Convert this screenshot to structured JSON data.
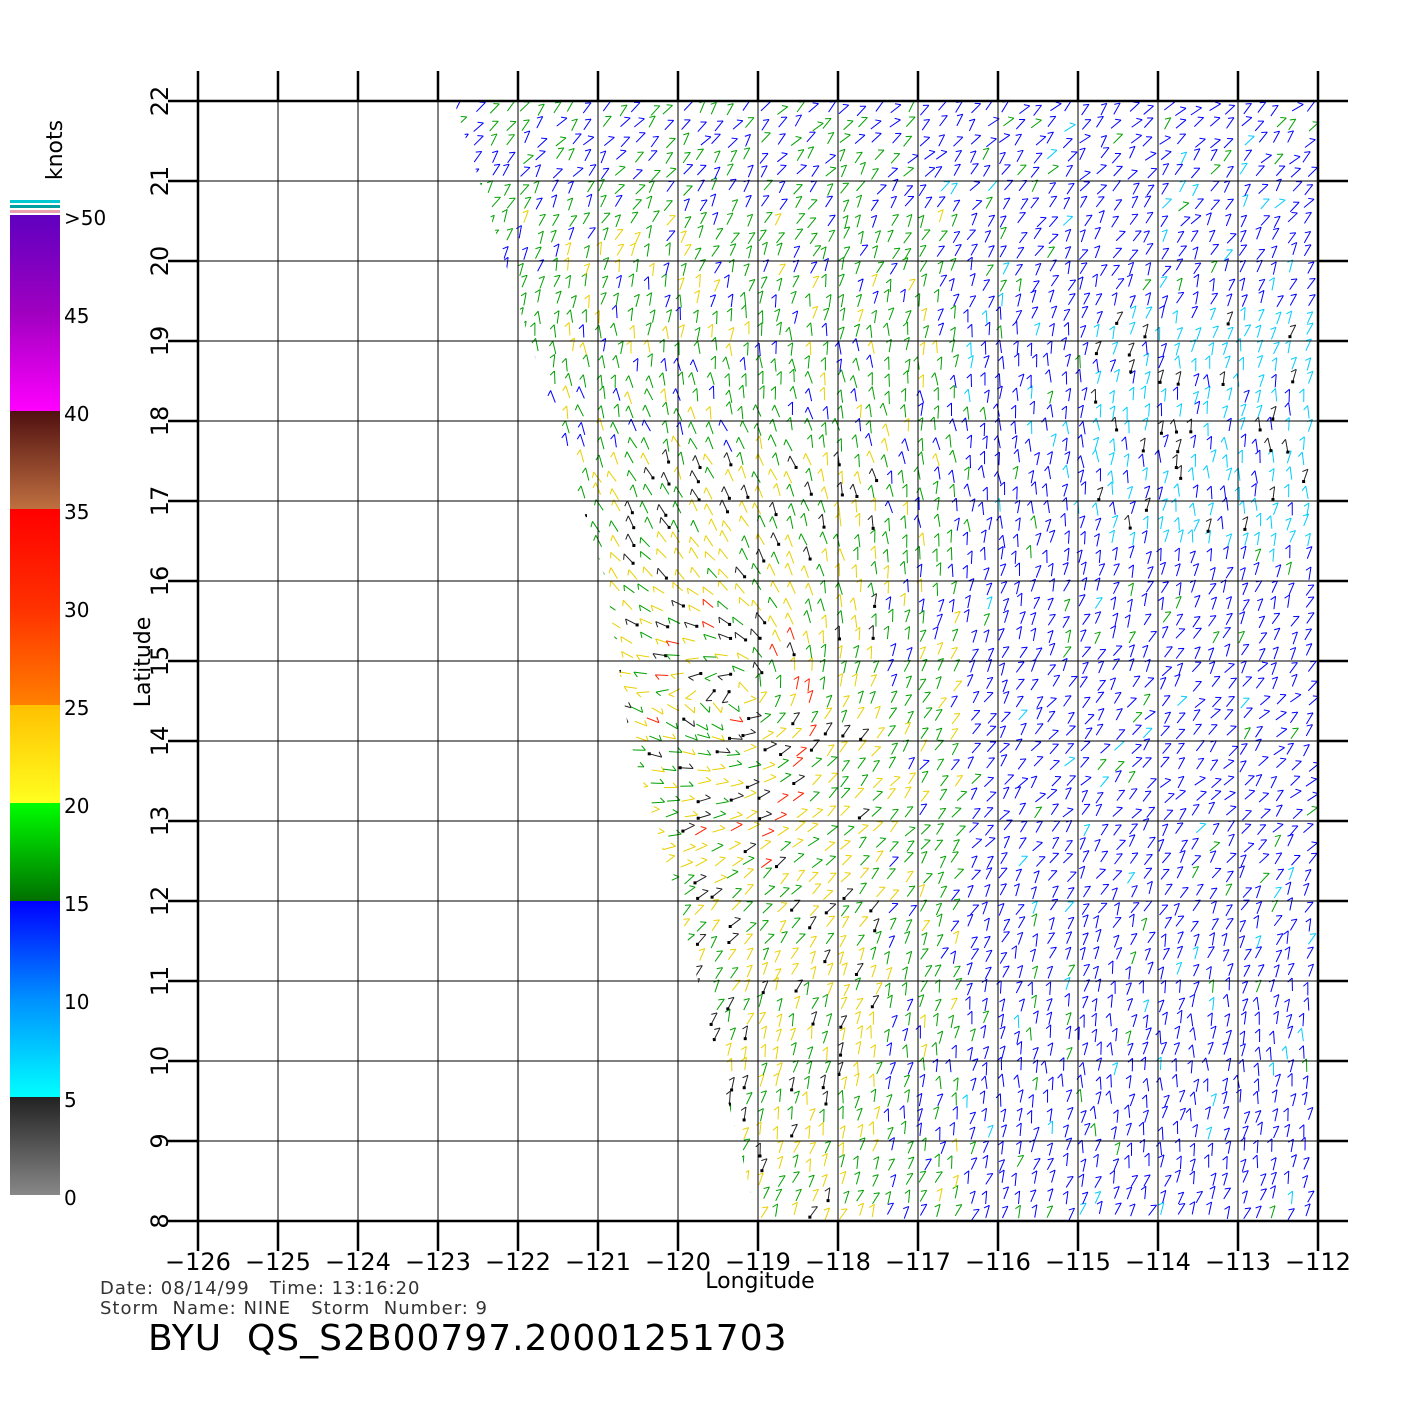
{
  "chart_data": {
    "type": "wind-vector-map",
    "xlabel": "Longitude",
    "ylabel": "Latitude",
    "xlim": [
      -126,
      -112
    ],
    "ylim": [
      8,
      22
    ],
    "x_ticks": [
      "-126",
      "-125",
      "-124",
      "-123",
      "-122",
      "-121",
      "-120",
      "-119",
      "-118",
      "-117",
      "-116",
      "-115",
      "-114",
      "-113",
      "-112"
    ],
    "y_ticks": [
      "8",
      "9",
      "10",
      "11",
      "12",
      "13",
      "14",
      "15",
      "16",
      "17",
      "18",
      "19",
      "20",
      "21",
      "22"
    ],
    "grid": true,
    "swath_left_edge": [
      [
        -122.8,
        22
      ],
      [
        -120.9,
        16
      ],
      [
        -120.6,
        14
      ],
      [
        -120,
        12
      ],
      [
        -119,
        8
      ]
    ],
    "wind_speed_legend": {
      "unit": "knots",
      "labels": [
        "0",
        "5",
        "10",
        "15",
        "20",
        "25",
        "30",
        "35",
        "40",
        "45",
        ">50"
      ],
      "bands": [
        {
          "from": 0,
          "to": 5,
          "colors": [
            "#888888",
            "#222222"
          ]
        },
        {
          "from": 5,
          "to": 15,
          "colors": [
            "#00ffff",
            "#0090ff",
            "#0000ff"
          ]
        },
        {
          "from": 15,
          "to": 20,
          "colors": [
            "#007000",
            "#00ff00"
          ]
        },
        {
          "from": 20,
          "to": 25,
          "colors": [
            "#ffff20",
            "#ffc000"
          ]
        },
        {
          "from": 25,
          "to": 35,
          "colors": [
            "#ff8000",
            "#ff3000",
            "#ff0000"
          ]
        },
        {
          "from": 35,
          "to": 40,
          "colors": [
            "#c07040",
            "#501010"
          ]
        },
        {
          "from": 40,
          "to": 50,
          "colors": [
            "#ff00ff",
            "#a000c0",
            "#6000c0"
          ]
        }
      ]
    }
  },
  "info": {
    "line1": "Date: 08/14/99   Time: 13:16:20",
    "line2": "Storm  Name: NINE   Storm  Number: 9",
    "title": "BYU  QS_S2B00797.20001251703"
  },
  "colors": {
    "calm": "#222222",
    "light": "#00ccff",
    "moderate": "#0000ff",
    "fresh": "#00a000",
    "strong": "#e8d000",
    "gale": "#ff2000"
  }
}
